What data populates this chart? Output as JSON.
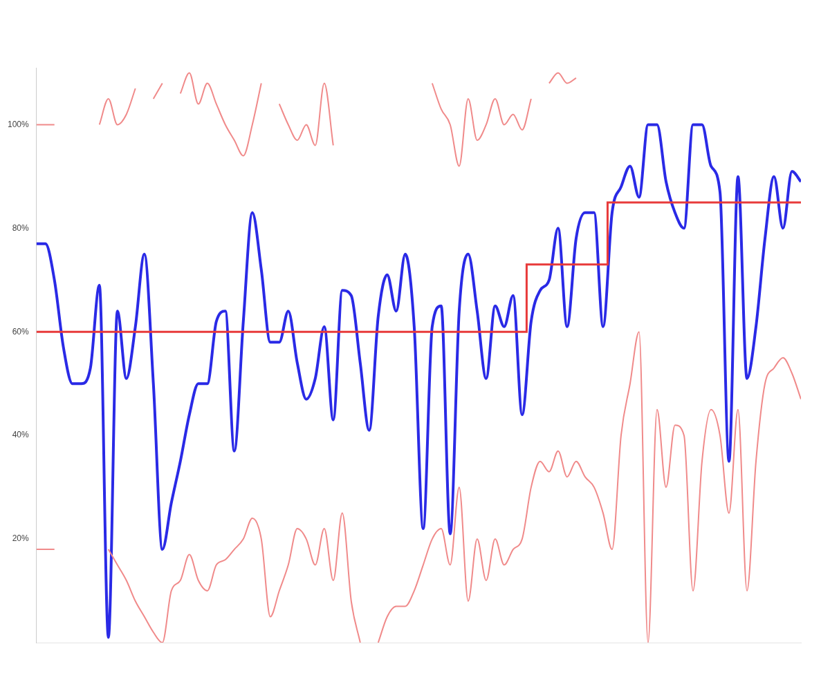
{
  "chart_data": {
    "type": "line",
    "categories": [
      null,
      null,
      null,
      null,
      null,
      null,
      null,
      null,
      null,
      null,
      null,
      null,
      null,
      null,
      null,
      null,
      null,
      null,
      null,
      null,
      null,
      null,
      null,
      null,
      null,
      null,
      null,
      null,
      null,
      null,
      null,
      null,
      null,
      null,
      null,
      null,
      null,
      null,
      null,
      null,
      null,
      null,
      null,
      null,
      null,
      null,
      null,
      null,
      null,
      null,
      null,
      null,
      null,
      null,
      null,
      null,
      null,
      null,
      null,
      null,
      null,
      null,
      null,
      null,
      null,
      null,
      null,
      null,
      null,
      null,
      null,
      null,
      null,
      null,
      null,
      null,
      null,
      null,
      null,
      null,
      null,
      null,
      null,
      null,
      null,
      null
    ],
    "series": [
      {
        "color": "#f08a8a",
        "values": [
          100,
          100,
          100,
          null,
          null,
          null,
          null,
          100,
          105,
          100,
          102,
          107,
          null,
          105,
          108,
          null,
          106,
          110,
          104,
          108,
          104,
          100,
          97,
          94,
          100,
          108,
          null,
          104,
          100,
          97,
          100,
          96,
          108,
          96,
          null,
          null,
          null,
          null,
          null,
          null,
          null,
          null,
          null,
          null,
          108,
          103,
          100,
          92,
          105,
          97,
          100,
          105,
          100,
          102,
          99,
          105,
          null,
          108,
          110,
          108,
          109,
          null,
          null,
          null,
          null,
          null,
          null,
          null,
          null,
          null,
          null,
          null,
          null,
          null,
          null,
          null,
          null,
          null,
          null,
          null,
          null,
          null,
          null,
          null,
          null,
          null
        ]
      },
      {
        "color": "#f08a8a",
        "values": [
          18,
          18,
          18,
          null,
          null,
          null,
          null,
          null,
          18,
          15,
          12,
          8,
          5,
          2,
          0,
          10,
          12,
          17,
          12,
          10,
          15,
          16,
          18,
          20,
          24,
          20,
          5,
          10,
          15,
          22,
          20,
          15,
          22,
          12,
          25,
          8,
          0,
          null,
          0,
          5,
          7,
          7,
          10,
          15,
          20,
          22,
          15,
          30,
          8,
          20,
          12,
          20,
          15,
          18,
          20,
          30,
          35,
          33,
          37,
          32,
          35,
          32,
          30,
          25,
          18,
          40,
          50,
          60,
          0,
          45,
          30,
          42,
          40,
          10,
          35,
          45,
          40,
          25,
          45,
          10,
          35,
          50,
          53,
          55,
          52,
          47
        ]
      },
      {
        "color": "#e83a3a",
        "type": "step",
        "values": [
          60,
          60,
          60,
          60,
          60,
          60,
          60,
          60,
          60,
          60,
          60,
          60,
          60,
          60,
          60,
          60,
          60,
          60,
          60,
          60,
          60,
          60,
          60,
          60,
          60,
          60,
          60,
          60,
          60,
          60,
          60,
          60,
          60,
          60,
          60,
          60,
          60,
          60,
          60,
          60,
          60,
          60,
          60,
          60,
          60,
          60,
          60,
          60,
          60,
          60,
          60,
          60,
          60,
          60,
          60,
          73,
          73,
          73,
          73,
          73,
          73,
          73,
          73,
          73,
          85,
          85,
          85,
          85,
          85,
          85,
          85,
          85,
          85,
          85,
          85,
          85,
          85,
          85,
          85,
          85,
          85,
          85,
          85,
          85,
          85,
          85
        ]
      },
      {
        "color": "#2a2ae6",
        "values": [
          77,
          77,
          70,
          57,
          50,
          50,
          53,
          69,
          1,
          64,
          51,
          61,
          75,
          50,
          18,
          27,
          35,
          44,
          50,
          50,
          62,
          64,
          37,
          62,
          83,
          72,
          58,
          58,
          64,
          54,
          47,
          51,
          61,
          43,
          68,
          67,
          54,
          41,
          63,
          71,
          64,
          75,
          61,
          22,
          61,
          65,
          21,
          64,
          75,
          64,
          51,
          65,
          61,
          67,
          44,
          62,
          68,
          70,
          80,
          61,
          78,
          83,
          83,
          61,
          83,
          88,
          92,
          86,
          100,
          100,
          89,
          83,
          80,
          100,
          100,
          92,
          87,
          35,
          90,
          51,
          61,
          78,
          90,
          80,
          91,
          89
        ]
      }
    ],
    "ylim": [
      0,
      111
    ],
    "yticks": [
      {
        "value": 20,
        "label": "20%"
      },
      {
        "value": 40,
        "label": "40%"
      },
      {
        "value": 60,
        "label": "60%"
      },
      {
        "value": 80,
        "label": "80%"
      },
      {
        "value": 100,
        "label": "100%"
      }
    ],
    "grid": false,
    "legend": false
  }
}
